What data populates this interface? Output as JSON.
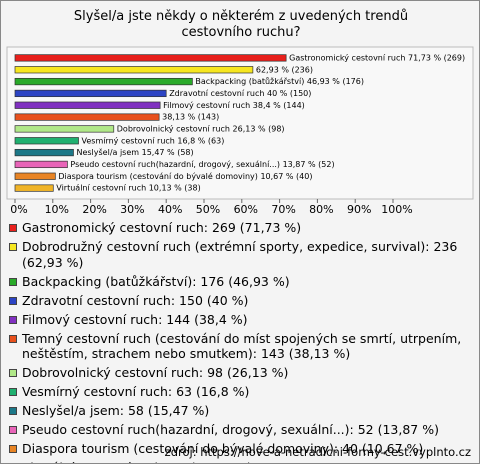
{
  "chart_data": {
    "type": "bar",
    "orientation": "horizontal",
    "title": "Slyšel/a jste někdy o některém z uvedených trendů cestovního ruchu?",
    "categories": [
      "Gastronomický cestovní ruch: 269 (71,73 %)",
      "Dobrodružný cestovní ruch (extrémní sporty, expedice, survival): 236 (62,93 %)",
      "Backpacking (batůžkářství): 176 (46,93 %)",
      "Zdravotní cestovní ruch: 150 (40 %)",
      "Filmový cestovní ruch: 144 (38,4 %)",
      "Temný cestovní ruch (cestování do míst spojených se smrtí, utrpením, neštěstím, strachem nebo smutkem): 143 (38,13 %)",
      "Dobrovolnický cestovní ruch: 98 (26,13 %)",
      "Vesmírný cestovní ruch: 63 (16,8 %)",
      "Neslyšel/a jsem: 58 (15,47 %)",
      "Pseudo cestovní ruch(hazardní, drogový, sexuální...): 52 (13,87 %)",
      "Diaspora tourism (cestování do bývalé domoviny): 40 (10,67 %)",
      "Virtuální cestovní ruch: 38 (10,13 %)"
    ],
    "values": [
      71.73,
      62.93,
      46.93,
      40,
      38.4,
      38.13,
      26.13,
      16.8,
      15.47,
      13.87,
      10.67,
      10.13
    ],
    "value_labels": [
      "Gastronomický cestovní ruch 71,73 % (269)",
      "62,93 % (236)",
      "Backpacking (batůžkářství) 46,93 % (176)",
      "Zdravotní cestovní ruch 40 % (150)",
      "Filmový cestovní ruch 38,4 % (144)",
      "38,13 % (143)",
      "Dobrovolnický cestovní ruch 26,13 % (98)",
      "Vesmírný cestovní ruch 16,8 % (63)",
      "Neslyšel/a jsem 15,47 % (58)",
      "Pseudo cestovní ruch(hazardní, drogový, sexuální...) 13,87 % (52)",
      "Diaspora tourism (cestování do bývalé domoviny) 10,67 % (40)",
      "Virtuální cestovní ruch 10,13 % (38)"
    ],
    "colors": [
      "#e8201c",
      "#f6e620",
      "#2aaa2a",
      "#2c44c4",
      "#8030c0",
      "#e8501c",
      "#b0e888",
      "#20b070",
      "#1c7888",
      "#e864b8",
      "#e88424",
      "#f0b428"
    ],
    "xlim": [
      0,
      100
    ],
    "xticks": [
      {
        "value": 0,
        "label": "0%"
      },
      {
        "value": 10,
        "label": "10%"
      },
      {
        "value": 20,
        "label": "20%"
      },
      {
        "value": 30,
        "label": "30%"
      },
      {
        "value": 40,
        "label": "40%"
      },
      {
        "value": 50,
        "label": "50%"
      },
      {
        "value": 60,
        "label": "60%"
      },
      {
        "value": 70,
        "label": "70%"
      },
      {
        "value": 80,
        "label": "80%"
      },
      {
        "value": 90,
        "label": "90%"
      },
      {
        "value": 100,
        "label": "100%"
      }
    ],
    "source": "zdroj: https://nove-a-netradicni-formy-cest.vyplnto.cz"
  }
}
